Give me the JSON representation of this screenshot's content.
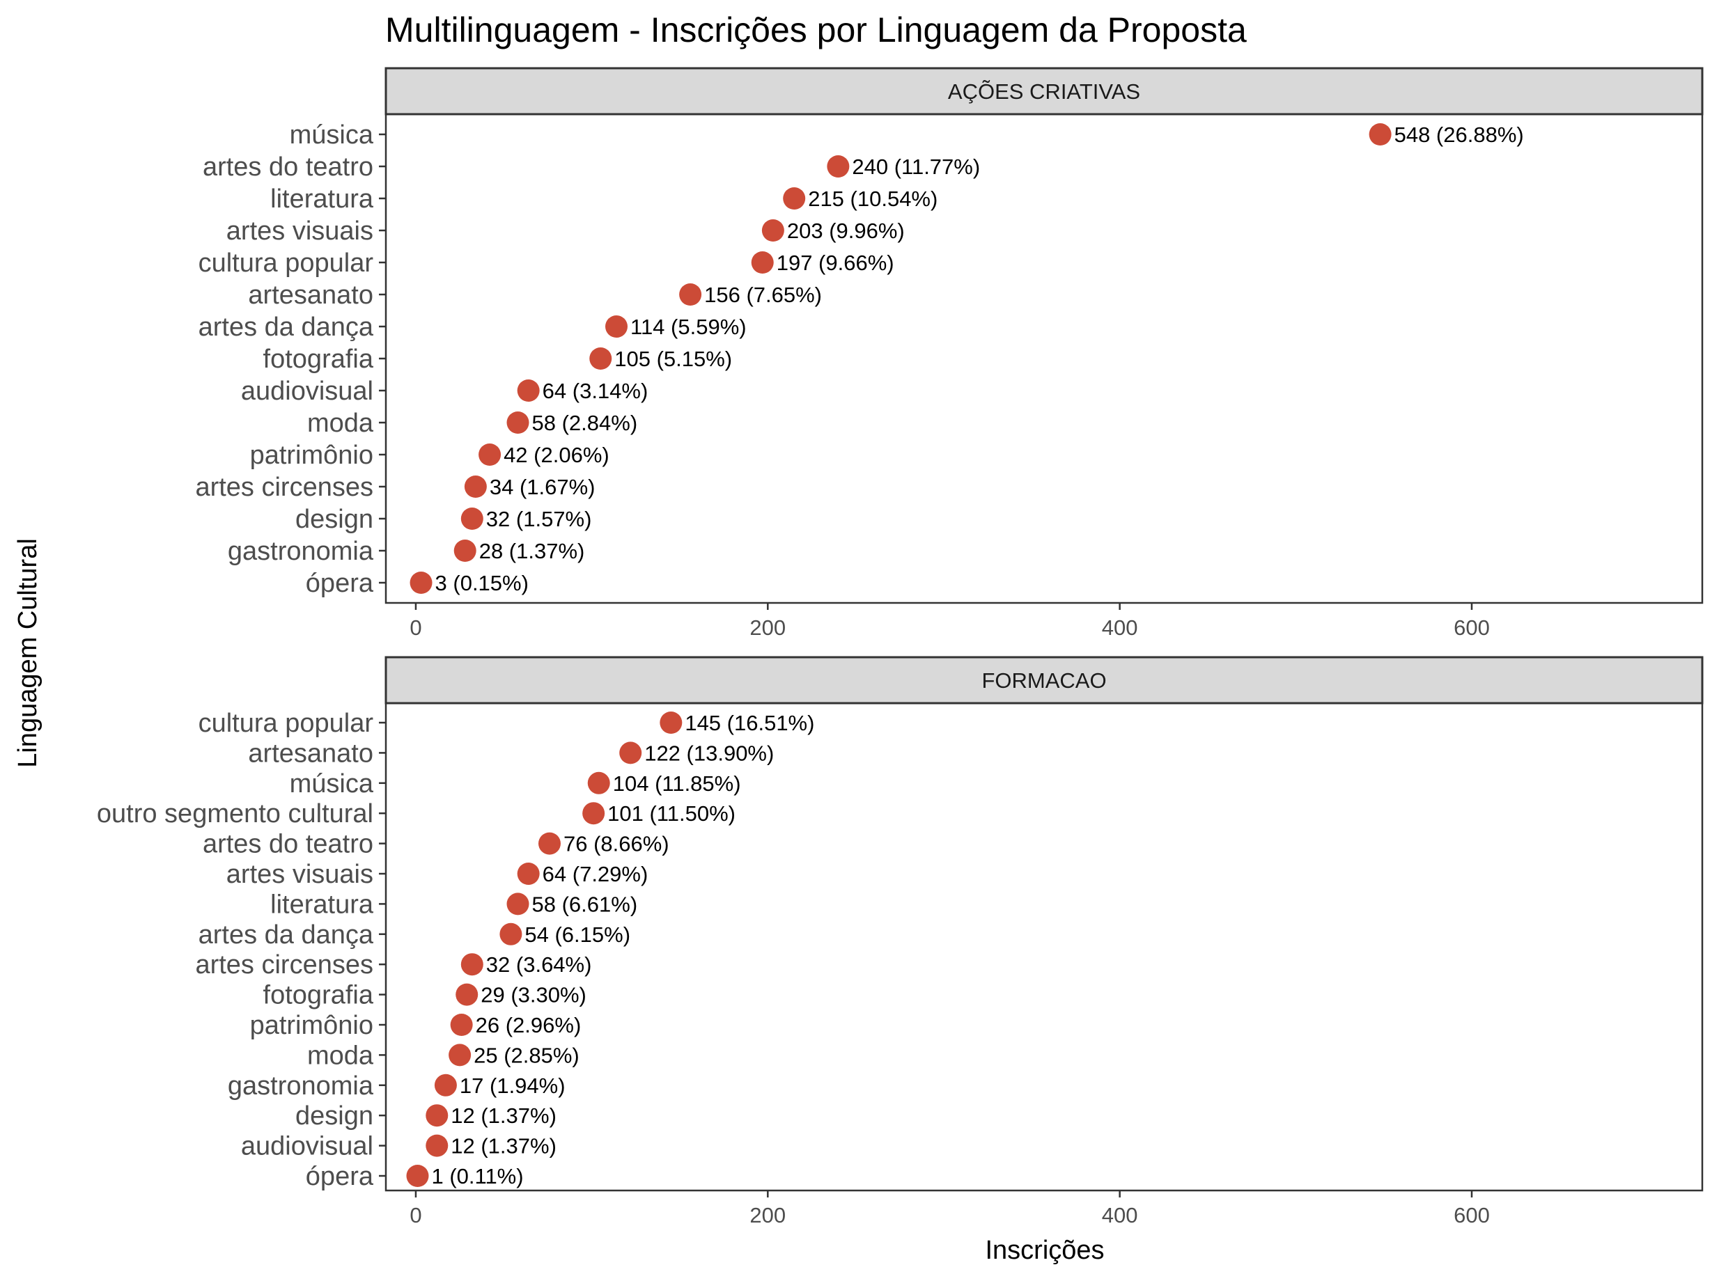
{
  "chart_data": {
    "type": "scatter",
    "title": "Multilinguagem - Inscrições por Linguagem da Proposta",
    "xlabel": "Inscrições",
    "ylabel": "Linguagem Cultural",
    "xlim": [
      -17,
      731
    ],
    "xticks": [
      0,
      200,
      400,
      600
    ],
    "xtick_labels": [
      "0",
      "200",
      "400",
      "600"
    ],
    "grid": false,
    "point_color": "#cc4b37",
    "panels": [
      {
        "strip": "AÇÕES CRIATIVAS",
        "categories": [
          "música",
          "artes do teatro",
          "literatura",
          "artes visuais",
          "cultura popular",
          "artesanato",
          "artes da dança",
          "fotografia",
          "audiovisual",
          "moda",
          "patrimônio",
          "artes circenses",
          "design",
          "gastronomia",
          "ópera"
        ],
        "values": [
          548,
          240,
          215,
          203,
          197,
          156,
          114,
          105,
          64,
          58,
          42,
          34,
          32,
          28,
          3
        ],
        "labels": [
          "548 (26.88%)",
          "240 (11.77%)",
          "215 (10.54%)",
          "203 (9.96%)",
          "197 (9.66%)",
          "156 (7.65%)",
          "114 (5.59%)",
          "105 (5.15%)",
          "64 (3.14%)",
          "58 (2.84%)",
          "42 (2.06%)",
          "34 (1.67%)",
          "32 (1.57%)",
          "28 (1.37%)",
          "3 (0.15%)"
        ]
      },
      {
        "strip": "FORMACAO",
        "categories": [
          "cultura popular",
          "artesanato",
          "música",
          "outro segmento cultural",
          "artes do teatro",
          "artes visuais",
          "literatura",
          "artes da dança",
          "artes circenses",
          "fotografia",
          "patrimônio",
          "moda",
          "gastronomia",
          "design",
          "audiovisual",
          "ópera"
        ],
        "values": [
          145,
          122,
          104,
          101,
          76,
          64,
          58,
          54,
          32,
          29,
          26,
          25,
          17,
          12,
          12,
          1
        ],
        "labels": [
          "145 (16.51%)",
          "122 (13.90%)",
          "104 (11.85%)",
          "101 (11.50%)",
          "76 (8.66%)",
          "64 (7.29%)",
          "58 (6.61%)",
          "54 (6.15%)",
          "32 (3.64%)",
          "29 (3.30%)",
          "26 (2.96%)",
          "25 (2.85%)",
          "17 (1.94%)",
          "12 (1.37%)",
          "12 (1.37%)",
          "1 (0.11%)"
        ]
      }
    ]
  }
}
